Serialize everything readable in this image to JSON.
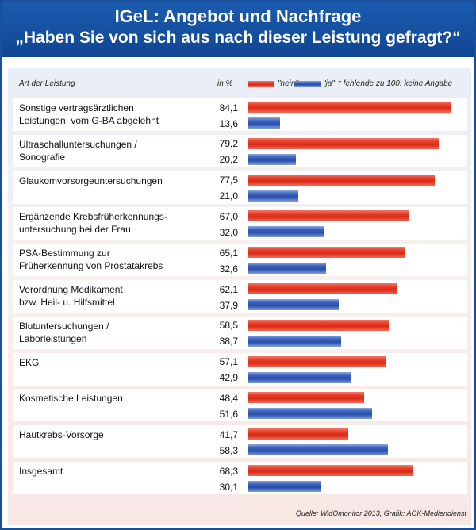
{
  "title": {
    "line1": "IGeL: Angebot und Nachfrage",
    "line2": "„Haben Sie von sich aus nach dieser Leistung gefragt?“"
  },
  "columns": {
    "category": "Art der Leistung",
    "percent": "in %",
    "legend_no": "\"nein\"",
    "legend_yes": "\"ja\"",
    "note": "* fehlende zu 100: keine Angabe"
  },
  "source": "Quelle: WidOmonitor 2013, Grafik: AOK-Mediendienst",
  "colors": {
    "nein": "#e23a26",
    "ja": "#3556b4",
    "header": "#1a55a6"
  },
  "chart_data": {
    "type": "bar",
    "orientation": "horizontal",
    "title": "IGeL: Angebot und Nachfrage – „Haben Sie von sich aus nach dieser Leistung gefragt?“",
    "xlabel": "in %",
    "ylabel": "Art der Leistung",
    "xlim": [
      0,
      84.1
    ],
    "categories": [
      [
        "Sonstige vertragsärztlichen",
        "Leistungen, vom G-BA abgelehnt"
      ],
      [
        "Ultraschalluntersuchungen /",
        "Sonografie"
      ],
      [
        "Glaukomvorsorgeuntersuchungen"
      ],
      [
        "Ergänzende Krebsfrüherkennungs-",
        "untersuchung bei der Frau"
      ],
      [
        "PSA-Bestimmung zur",
        "Früherkennung von Prostatakrebs"
      ],
      [
        "Verordnung Medikament",
        "bzw. Heil- u. Hilfsmittel"
      ],
      [
        "Blutuntersuchungen /",
        "Laborleistungen"
      ],
      [
        "EKG"
      ],
      [
        "Kosmetische Leistungen"
      ],
      [
        "Hautkrebs-Vorsorge"
      ],
      [
        "Insgesamt"
      ]
    ],
    "series": [
      {
        "name": "\"nein\"",
        "labels": [
          "84,1",
          "79,2",
          "77,5",
          "67,0",
          "65,1",
          "62,1",
          "58,5",
          "57,1",
          "48,4",
          "41,7",
          "68,3"
        ],
        "values": [
          84.1,
          79.2,
          77.5,
          67.0,
          65.1,
          62.1,
          58.5,
          57.1,
          48.4,
          41.7,
          68.3
        ]
      },
      {
        "name": "\"ja\"",
        "labels": [
          "13,6",
          "20,2",
          "21,0",
          "32,0",
          "32,6",
          "37,9",
          "38,7",
          "42,9",
          "51,6",
          "58,3",
          "30,1"
        ],
        "values": [
          13.6,
          20.2,
          21.0,
          32.0,
          32.6,
          37.9,
          38.7,
          42.9,
          51.6,
          58.3,
          30.1
        ]
      }
    ],
    "legend": "top",
    "grid": false
  }
}
